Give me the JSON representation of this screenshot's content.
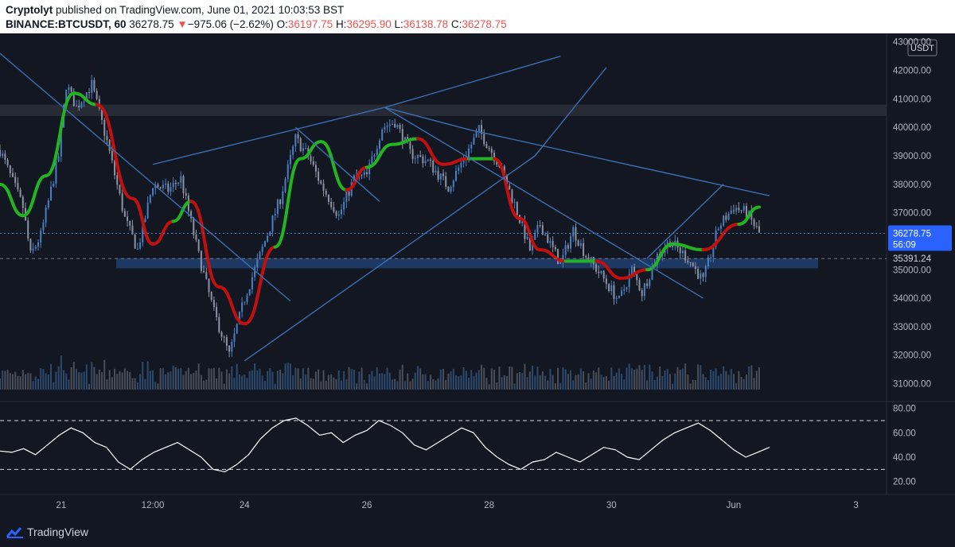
{
  "header": {
    "author": "Cryptolyt",
    "published_text": "published on TradingView.com, June 01, 2021 10:03:53 BST",
    "symbol": "BINANCE:BTCUSDT, 60",
    "last": "36278.75",
    "change_arrow": "▼",
    "change": "−975.06 (−2.62%)",
    "open_label": "O:",
    "open": "36197.75",
    "high_label": "H:",
    "high": "36295.90",
    "low_label": "L:",
    "low": "36138.78",
    "close_label": "C:",
    "close": "36278.75"
  },
  "price_axis": {
    "currency": "USDT",
    "ticks": [
      "43000.00",
      "42000.00",
      "41000.00",
      "40000.00",
      "39000.00",
      "38000.00",
      "37000.00",
      "35000.00",
      "34000.00",
      "33000.00",
      "32000.00",
      "31000.00"
    ],
    "last_price": "36278.75",
    "countdown": "56:09",
    "level_label": "35391.24"
  },
  "rsi_axis": {
    "ticks": [
      "80.00",
      "60.00",
      "40.00",
      "20.00"
    ]
  },
  "time_axis": {
    "ticks": [
      "21",
      "12:00",
      "24",
      "26",
      "28",
      "30",
      "Jun",
      "3"
    ]
  },
  "footer": {
    "brand": "TradingView"
  },
  "colors": {
    "background": "#131722",
    "up": "#4a7fc1",
    "down": "#8c93a3",
    "ma_up": "#22b422",
    "ma_down": "#c21010",
    "trendline": "#3c6fb0",
    "rsi": "#ffffff",
    "text": "#b2b5be",
    "last_price_box": "#2962ff"
  },
  "chart_data": {
    "type": "candlestick",
    "symbol": "BINANCE:BTCUSDT",
    "timeframe": "60",
    "x_range": [
      "2021-05-20T00:00",
      "2021-06-03T12:00"
    ],
    "y_range": [
      30400,
      43300
    ],
    "last_price": 36278.75,
    "level": 35391.24,
    "path": [
      [
        "2021-05-20T00:00",
        39200
      ],
      [
        "2021-05-20T09:00",
        37200
      ],
      [
        "2021-05-20T12:00",
        35500
      ],
      [
        "2021-05-20T16:00",
        36200
      ],
      [
        "2021-05-20T23:00",
        39000
      ],
      [
        "2021-05-21T02:00",
        41500
      ],
      [
        "2021-05-21T06:00",
        40700
      ],
      [
        "2021-05-21T12:00",
        41500
      ],
      [
        "2021-05-21T18:00",
        39500
      ],
      [
        "2021-05-22T01:00",
        36800
      ],
      [
        "2021-05-22T06:00",
        35700
      ],
      [
        "2021-05-22T12:00",
        38000
      ],
      [
        "2021-05-22T18:00",
        37800
      ],
      [
        "2021-05-22T23:00",
        38200
      ],
      [
        "2021-05-23T06:00",
        35500
      ],
      [
        "2021-05-23T12:00",
        33500
      ],
      [
        "2021-05-23T18:00",
        32000
      ],
      [
        "2021-05-24T00:00",
        34000
      ],
      [
        "2021-05-24T06:00",
        35500
      ],
      [
        "2021-05-24T14:00",
        37500
      ],
      [
        "2021-05-24T20:00",
        39600
      ],
      [
        "2021-05-25T01:00",
        39000
      ],
      [
        "2021-05-25T06:00",
        38000
      ],
      [
        "2021-05-25T13:00",
        36900
      ],
      [
        "2021-05-25T19:00",
        38200
      ],
      [
        "2021-05-26T00:00",
        38300
      ],
      [
        "2021-05-26T06:00",
        40000
      ],
      [
        "2021-05-26T11:00",
        40200
      ],
      [
        "2021-05-26T17:00",
        39100
      ],
      [
        "2021-05-27T00:00",
        38800
      ],
      [
        "2021-05-27T08:00",
        37900
      ],
      [
        "2021-05-27T14:00",
        38900
      ],
      [
        "2021-05-27T20:00",
        39900
      ],
      [
        "2021-05-28T04:00",
        38700
      ],
      [
        "2021-05-28T10:00",
        37300
      ],
      [
        "2021-05-28T16:00",
        35700
      ],
      [
        "2021-05-28T20:00",
        36600
      ],
      [
        "2021-05-29T04:00",
        35200
      ],
      [
        "2021-05-29T09:00",
        36400
      ],
      [
        "2021-05-29T14:00",
        35500
      ],
      [
        "2021-05-29T20:00",
        34800
      ],
      [
        "2021-05-30T03:00",
        33900
      ],
      [
        "2021-05-30T08:00",
        35000
      ],
      [
        "2021-05-30T12:00",
        34200
      ],
      [
        "2021-05-30T18:00",
        35500
      ],
      [
        "2021-05-30T23:00",
        36000
      ],
      [
        "2021-05-31T06:00",
        35400
      ],
      [
        "2021-05-31T12:00",
        34600
      ],
      [
        "2021-05-31T18:00",
        36500
      ],
      [
        "2021-06-01T00:00",
        37200
      ],
      [
        "2021-06-01T05:00",
        37000
      ],
      [
        "2021-06-01T10:00",
        36278.75
      ]
    ],
    "moving_average": [
      [
        "2021-05-20T00:00",
        38000
      ],
      [
        "2021-05-20T09:00",
        36900
      ],
      [
        "2021-05-20T18:00",
        38300
      ],
      [
        "2021-05-21T05:00",
        41200
      ],
      [
        "2021-05-21T14:00",
        40800
      ],
      [
        "2021-05-22T04:00",
        37500
      ],
      [
        "2021-05-22T12:00",
        35900
      ],
      [
        "2021-05-22T20:00",
        36700
      ],
      [
        "2021-05-23T03:00",
        37400
      ],
      [
        "2021-05-23T14:00",
        34400
      ],
      [
        "2021-05-24T00:00",
        33100
      ],
      [
        "2021-05-24T12:00",
        35800
      ],
      [
        "2021-05-24T22:00",
        38900
      ],
      [
        "2021-05-25T06:00",
        39500
      ],
      [
        "2021-05-25T16:00",
        37800
      ],
      [
        "2021-05-26T00:00",
        38600
      ],
      [
        "2021-05-26T10:00",
        39400
      ],
      [
        "2021-05-26T20:00",
        39600
      ],
      [
        "2021-05-27T06:00",
        38700
      ],
      [
        "2021-05-27T16:00",
        38900
      ],
      [
        "2021-05-28T02:00",
        38900
      ],
      [
        "2021-05-28T12:00",
        36800
      ],
      [
        "2021-05-28T20:00",
        35700
      ],
      [
        "2021-05-29T06:00",
        35300
      ],
      [
        "2021-05-29T18:00",
        35300
      ],
      [
        "2021-05-30T04:00",
        34700
      ],
      [
        "2021-05-30T14:00",
        35000
      ],
      [
        "2021-05-31T00:00",
        35900
      ],
      [
        "2021-05-31T12:00",
        35700
      ],
      [
        "2021-06-01T02:00",
        36600
      ],
      [
        "2021-06-01T10:00",
        37200
      ]
    ],
    "ma_colors": [
      "up",
      "up",
      "up",
      "up",
      "down",
      "down",
      "down",
      "up",
      "down",
      "down",
      "down",
      "up",
      "up",
      "up",
      "down",
      "up",
      "up",
      "down",
      "down",
      "up",
      "down",
      "down",
      "down",
      "up",
      "down",
      "down",
      "up",
      "up",
      "down",
      "up"
    ],
    "trendlines": [
      [
        [
          "2021-05-20T00:00",
          42600
        ],
        [
          "2021-05-24T18:00",
          33900
        ]
      ],
      [
        [
          "2021-05-22T12:00",
          38700
        ],
        [
          "2021-05-26T07:00",
          40700
        ]
      ],
      [
        [
          "2021-05-26T07:00",
          40700
        ],
        [
          "2021-05-27T17:00",
          39900
        ]
      ],
      [
        [
          "2021-05-27T17:00",
          39900
        ],
        [
          "2021-06-01T14:00",
          37600
        ]
      ],
      [
        [
          "2021-05-26T07:00",
          40700
        ],
        [
          "2021-05-31T12:00",
          34000
        ]
      ],
      [
        [
          "2021-05-24T00:00",
          31800
        ],
        [
          "2021-05-28T18:00",
          39000
        ]
      ],
      [
        [
          "2021-05-26T07:00",
          40700
        ],
        [
          "2021-05-29T04:00",
          42500
        ]
      ],
      [
        [
          "2021-05-28T18:00",
          39000
        ],
        [
          "2021-05-29T22:00",
          42100
        ]
      ],
      [
        [
          "2021-05-24T20:00",
          40000
        ],
        [
          "2021-05-26T05:00",
          37400
        ]
      ],
      [
        [
          "2021-05-30T14:00",
          35400
        ],
        [
          "2021-05-31T20:00",
          38000
        ]
      ]
    ],
    "zones": [
      {
        "from": 40400,
        "to": 40800,
        "label": "resistance"
      },
      {
        "from": 35050,
        "to": 35400,
        "label": "support"
      }
    ],
    "volume_baseline_note": "volume histogram at bottom of price pane",
    "rsi": {
      "ylim": [
        10,
        85
      ],
      "overbought": 70,
      "oversold": 30,
      "values": [
        45,
        44,
        47,
        42,
        50,
        58,
        64,
        60,
        52,
        48,
        36,
        30,
        38,
        44,
        48,
        52,
        46,
        40,
        30,
        28,
        34,
        42,
        55,
        64,
        70,
        72,
        66,
        58,
        60,
        52,
        58,
        62,
        70,
        66,
        60,
        50,
        46,
        52,
        58,
        64,
        60,
        48,
        40,
        34,
        30,
        36,
        38,
        44,
        40,
        36,
        42,
        48,
        46,
        40,
        38,
        46,
        54,
        60,
        64,
        68,
        62,
        54,
        46,
        40,
        44,
        48
      ]
    }
  }
}
